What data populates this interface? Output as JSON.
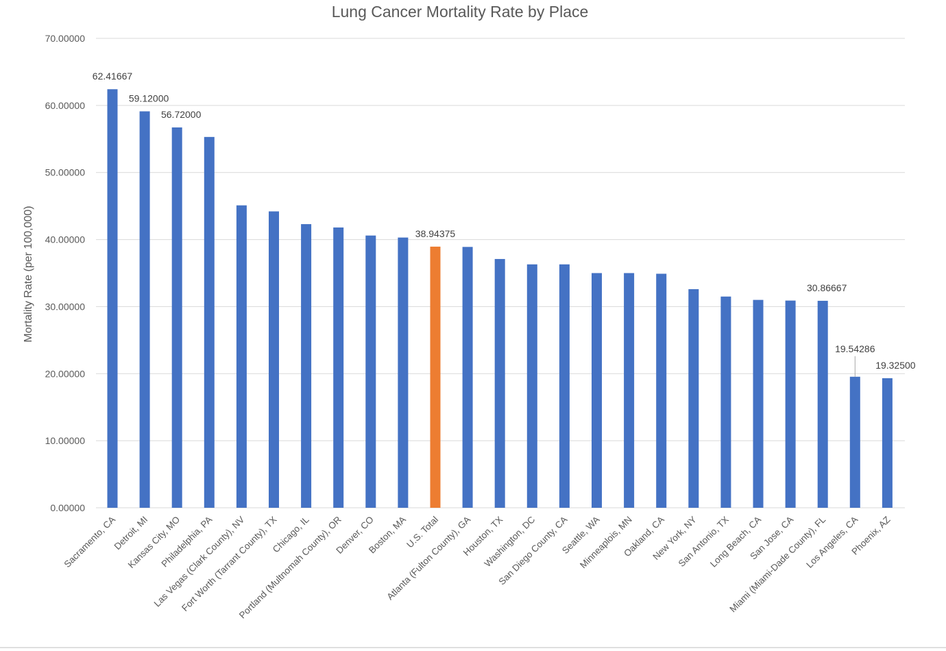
{
  "chart_data": {
    "type": "bar",
    "title": "Lung Cancer Mortality Rate by Place",
    "xlabel": "",
    "ylabel": "Mortality Rate (per 100,000)",
    "ylim": [
      0,
      70
    ],
    "grid": true,
    "legend": "none",
    "tick_labels": [
      "0.00000",
      "10.00000",
      "20.00000",
      "30.00000",
      "40.00000",
      "50.00000",
      "60.00000",
      "70.00000"
    ],
    "categories": [
      "Sacramento, CA",
      "Detroit, MI",
      "Kansas City, MO",
      "Philadelphia, PA",
      "Las Vegas (Clark County), NV",
      "Fort Worth (Tarrant County), TX",
      "Chicago, IL",
      "Portland (Multnomah County), OR",
      "Denver, CO",
      "Boston, MA",
      "U.S. Total",
      "Atlanta (Fulton County), GA",
      "Houston, TX",
      "Washington, DC",
      "San Diego County, CA",
      "Seattle, WA",
      "Minneaplois, MN",
      "Oakland, CA",
      "New York, NY",
      "San Antonio, TX",
      "Long Beach, CA",
      "San Jose, CA",
      "Miami (Miami-Dade County), FL",
      "Los Angeles, CA",
      "Phoenix, AZ"
    ],
    "values": [
      62.41667,
      59.12,
      56.72,
      55.3,
      45.1,
      44.2,
      42.3,
      41.8,
      40.6,
      40.3,
      38.94375,
      38.9,
      37.1,
      36.3,
      36.3,
      35.0,
      35.0,
      34.9,
      32.6,
      31.5,
      31.0,
      30.9,
      30.86667,
      19.54286,
      19.325
    ],
    "data_labels": [
      {
        "index": 0,
        "text": "62.41667"
      },
      {
        "index": 1,
        "text": "59.12000"
      },
      {
        "index": 2,
        "text": "56.72000"
      },
      {
        "index": 10,
        "text": "38.94375"
      },
      {
        "index": 22,
        "text": "30.86667"
      },
      {
        "index": 23,
        "text": "19.54286"
      },
      {
        "index": 24,
        "text": "19.32500"
      }
    ],
    "highlight_index": 10,
    "colors": {
      "bar": "#4472c4",
      "highlight": "#ed7d31"
    }
  }
}
